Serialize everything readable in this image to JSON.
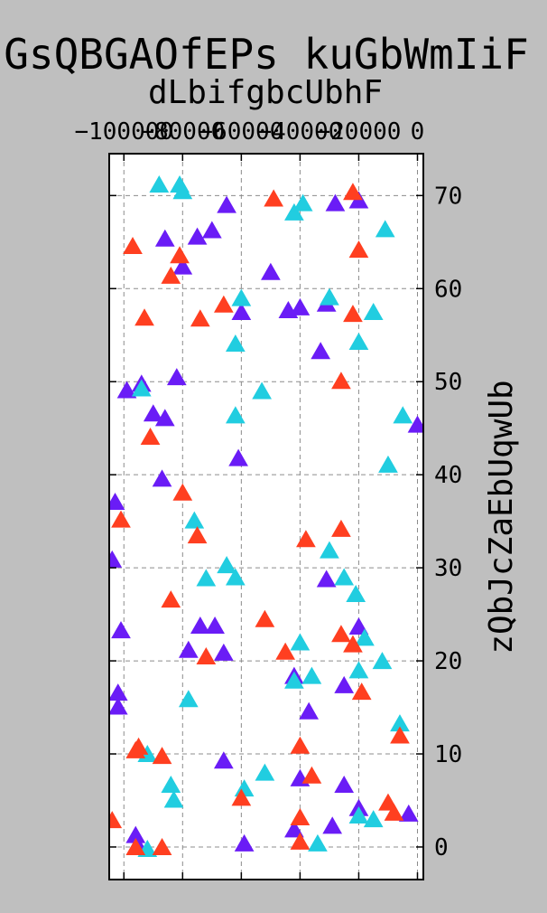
{
  "chart_data": {
    "type": "scatter",
    "title": "GsQBGAOfEPs kuGbWmIiF",
    "xlabel": "dLbifgbcUbhF",
    "ylabel": "zQbJcZaEbUqwUb",
    "xlim": [
      -105000,
      2000
    ],
    "ylim": [
      -3.5,
      74.5
    ],
    "x_axis_position": "top",
    "y_axis_position": "right",
    "xticks": [
      -100000,
      -80000,
      -60000,
      -40000,
      -20000,
      0
    ],
    "xtick_labels": [
      "-100000",
      "-80000",
      "-60000",
      "-40000",
      "-20000",
      "0"
    ],
    "yticks": [
      0,
      10,
      20,
      30,
      40,
      50,
      60,
      70
    ],
    "ytick_labels": [
      "0",
      "10",
      "20",
      "30",
      "40",
      "50",
      "60",
      "70"
    ],
    "grid": true,
    "marker": "triangle-up",
    "series": [
      {
        "name": "series-purple",
        "color": "#6a1cf6",
        "points": [
          [
            -96000,
            1.2
          ],
          [
            -95000,
            0
          ],
          [
            -94000,
            49.7
          ],
          [
            -99000,
            49
          ],
          [
            -80000,
            62.3
          ],
          [
            -90000,
            46.5
          ],
          [
            -86000,
            46
          ],
          [
            -87000,
            39.5
          ],
          [
            -82000,
            50.4
          ],
          [
            -103000,
            37
          ],
          [
            -104000,
            30.8
          ],
          [
            -101000,
            23.2
          ],
          [
            -102000,
            16.5
          ],
          [
            -102000,
            15
          ],
          [
            -75000,
            65.5
          ],
          [
            -86000,
            65.3
          ],
          [
            -70000,
            66.2
          ],
          [
            -65000,
            68.9
          ],
          [
            -50000,
            61.7
          ],
          [
            -60000,
            57.4
          ],
          [
            -44000,
            57.6
          ],
          [
            -40000,
            57.9
          ],
          [
            -31000,
            58.3
          ],
          [
            -33000,
            53.2
          ],
          [
            -20000,
            69.4
          ],
          [
            -28000,
            69.1
          ],
          [
            -61000,
            41.7
          ],
          [
            -78000,
            21.1
          ],
          [
            -74000,
            23.7
          ],
          [
            -69000,
            23.7
          ],
          [
            -66000,
            20.8
          ],
          [
            -66000,
            9.2
          ],
          [
            -59000,
            0.3
          ],
          [
            -40000,
            7.3
          ],
          [
            -42000,
            18.3
          ],
          [
            -37000,
            14.5
          ],
          [
            -31000,
            28.7
          ],
          [
            -25000,
            17.3
          ],
          [
            -20000,
            23.6
          ],
          [
            -20000,
            4.1
          ],
          [
            -25000,
            6.6
          ],
          [
            -29000,
            2.2
          ],
          [
            -42000,
            1.8
          ],
          [
            -3000,
            3.5
          ],
          [
            0,
            45.3
          ]
        ]
      },
      {
        "name": "series-cyan",
        "color": "#21cde0",
        "points": [
          [
            -88000,
            71.1
          ],
          [
            -81000,
            71.1
          ],
          [
            -80000,
            70.4
          ],
          [
            -42000,
            68.1
          ],
          [
            -39000,
            69.1
          ],
          [
            -11000,
            66.3
          ],
          [
            -30000,
            59
          ],
          [
            -60000,
            58.9
          ],
          [
            -20000,
            54.2
          ],
          [
            -62000,
            54
          ],
          [
            -15000,
            57.4
          ],
          [
            -94000,
            49.2
          ],
          [
            -53000,
            48.9
          ],
          [
            -62000,
            46.3
          ],
          [
            -10000,
            41
          ],
          [
            -5000,
            46.3
          ],
          [
            -76000,
            35
          ],
          [
            -30000,
            31.8
          ],
          [
            -62000,
            28.9
          ],
          [
            -65000,
            30.2
          ],
          [
            -72000,
            28.8
          ],
          [
            -25000,
            28.9
          ],
          [
            -21000,
            27.1
          ],
          [
            -40000,
            21.9
          ],
          [
            -42000,
            17.8
          ],
          [
            -36000,
            18.3
          ],
          [
            -20000,
            18.9
          ],
          [
            -18000,
            22.4
          ],
          [
            -12000,
            19.9
          ],
          [
            -78000,
            15.8
          ],
          [
            -6000,
            13.2
          ],
          [
            -52000,
            7.9
          ],
          [
            -59000,
            6.2
          ],
          [
            -84000,
            6.6
          ],
          [
            -83000,
            5
          ],
          [
            -34000,
            0.3
          ],
          [
            -20000,
            3.3
          ],
          [
            -15000,
            2.9
          ],
          [
            -92000,
            9.9
          ],
          [
            -92000,
            -0.3
          ]
        ]
      },
      {
        "name": "series-red",
        "color": "#ff3f20",
        "points": [
          [
            -22000,
            70.3
          ],
          [
            -49000,
            69.6
          ],
          [
            -97000,
            64.5
          ],
          [
            -81000,
            63.5
          ],
          [
            -84000,
            61.3
          ],
          [
            -20000,
            64.1
          ],
          [
            -93000,
            56.8
          ],
          [
            -74000,
            56.7
          ],
          [
            -66000,
            58.2
          ],
          [
            -22000,
            57.2
          ],
          [
            -26000,
            50
          ],
          [
            -91000,
            44
          ],
          [
            -80000,
            38
          ],
          [
            -101000,
            35.1
          ],
          [
            -75000,
            33.4
          ],
          [
            -38000,
            33
          ],
          [
            -26000,
            34.1
          ],
          [
            -84000,
            26.5
          ],
          [
            -52000,
            24.4
          ],
          [
            -72000,
            20.4
          ],
          [
            -45000,
            20.9
          ],
          [
            -26000,
            22.8
          ],
          [
            -22000,
            21.7
          ],
          [
            -19000,
            16.6
          ],
          [
            -40000,
            10.8
          ],
          [
            -36000,
            7.6
          ],
          [
            -6000,
            11.9
          ],
          [
            -10000,
            4.7
          ],
          [
            -8000,
            3.6
          ],
          [
            -60000,
            5.2
          ],
          [
            -40000,
            3.1
          ],
          [
            -40000,
            0.5
          ],
          [
            -104000,
            2.8
          ],
          [
            -95000,
            10.7
          ],
          [
            -96000,
            10.3
          ],
          [
            -87000,
            9.7
          ],
          [
            -96000,
            -0.1
          ],
          [
            -87000,
            -0.1
          ]
        ]
      }
    ]
  }
}
